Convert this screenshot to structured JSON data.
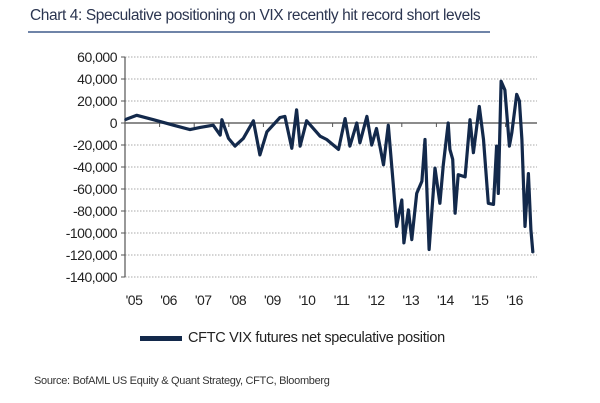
{
  "title": "Chart 4: Speculative positioning on VIX recently hit record short levels",
  "source": "Source: BofAML US Equity & Quant Strategy,  CFTC, Bloomberg",
  "chart_data": {
    "type": "line",
    "title": "Chart 4: Speculative positioning on VIX recently hit record short levels",
    "xlabel": "",
    "ylabel": "",
    "ylim": [
      -140000,
      60000
    ],
    "xlim": [
      2005.0,
      2016.85
    ],
    "grid": "horizontal dotted",
    "legend_position": "bottom",
    "line_color": "#13294b",
    "y_ticks": [
      "60,000",
      "40,000",
      "20,000",
      "0",
      "-20,000",
      "-40,000",
      "-60,000",
      "-80,000",
      "-100,000",
      "-120,000",
      "-140,000"
    ],
    "y_tick_values": [
      60000,
      40000,
      20000,
      0,
      -20000,
      -40000,
      -60000,
      -80000,
      -100000,
      -120000,
      -140000
    ],
    "x_ticks": [
      "'05",
      "'06",
      "'07",
      "'08",
      "'09",
      "'10",
      "'11",
      "'12",
      "'13",
      "'14",
      "'15",
      "'16"
    ],
    "x_tick_values": [
      2005,
      2006,
      2007,
      2008,
      2009,
      2010,
      2011,
      2012,
      2013,
      2014,
      2015,
      2016
    ],
    "series": [
      {
        "name": "CFTC VIX futures net speculative position",
        "x": [
          2005.0,
          2005.34,
          2005.82,
          2006.4,
          2006.88,
          2007.17,
          2007.55,
          2007.75,
          2007.8,
          2007.99,
          2008.18,
          2008.42,
          2008.71,
          2008.9,
          2009.1,
          2009.48,
          2009.62,
          2009.82,
          2009.96,
          2010.06,
          2010.25,
          2010.64,
          2010.83,
          2011.17,
          2011.36,
          2011.5,
          2011.7,
          2011.79,
          2011.99,
          2012.13,
          2012.27,
          2012.47,
          2012.61,
          2012.75,
          2012.85,
          2013.0,
          2013.06,
          2013.19,
          2013.29,
          2013.43,
          2013.58,
          2013.67,
          2013.79,
          2013.96,
          2014.1,
          2014.2,
          2014.34,
          2014.39,
          2014.47,
          2014.54,
          2014.63,
          2014.83,
          2014.97,
          2015.07,
          2015.24,
          2015.36,
          2015.5,
          2015.65,
          2015.74,
          2015.79,
          2015.87,
          2015.98,
          2016.11,
          2016.18,
          2016.32,
          2016.4,
          2016.47,
          2016.56,
          2016.66,
          2016.73,
          2016.79
        ],
        "y": [
          3000,
          7000,
          3000,
          -2000,
          -6000,
          -4000,
          -2000,
          -11000,
          3000,
          -14000,
          -21000,
          -14000,
          2000,
          -29000,
          -8000,
          5000,
          6000,
          -23000,
          12000,
          -21000,
          2000,
          -12000,
          -15000,
          -24000,
          4000,
          -21000,
          0,
          -18000,
          6000,
          -20000,
          -5000,
          -38000,
          -2000,
          -55000,
          -94000,
          -70000,
          -109000,
          -79000,
          -106000,
          -64000,
          -53000,
          -15000,
          -115000,
          -41000,
          -73000,
          -38000,
          0,
          -24000,
          -33000,
          -82000,
          -47000,
          -49000,
          3000,
          -27000,
          15000,
          -15000,
          -73000,
          -74000,
          -21000,
          -64000,
          38000,
          30000,
          -21000,
          -9000,
          26000,
          20000,
          -15000,
          -94000,
          -46000,
          -97000,
          -118000
        ]
      }
    ]
  }
}
